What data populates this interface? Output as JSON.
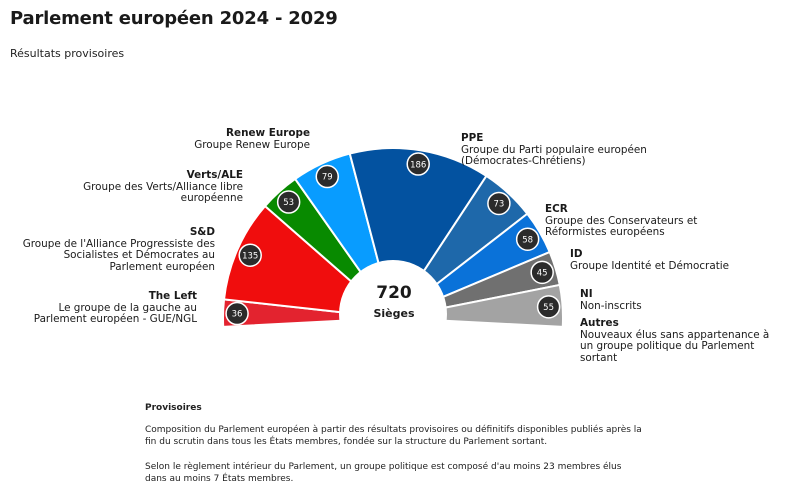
{
  "title": "Parlement européen 2024 - 2029",
  "subtitle": "Résultats provisoires",
  "chart_data": {
    "type": "pie",
    "variant": "parliament-semicircle",
    "total": 720,
    "total_label": "Sièges",
    "series": [
      {
        "name": "The Left",
        "description": "Le groupe de la gauche au Parlement européen - GUE/NGL",
        "value": 36,
        "color": "#e3232f"
      },
      {
        "name": "S&D",
        "description": "Groupe de l'Alliance Progressiste des Socialistes et Démocrates au Parlement européen",
        "value": 135,
        "color": "#f00d0d"
      },
      {
        "name": "Verts/ALE",
        "description": "Groupe des Verts/Alliance libre européenne",
        "value": 53,
        "color": "#088a00"
      },
      {
        "name": "Renew Europe",
        "description": "Groupe Renew Europe",
        "value": 79,
        "color": "#089cff"
      },
      {
        "name": "PPE",
        "description": "Groupe du Parti populaire européen (Démocrates-Chrétiens)",
        "value": 186,
        "color": "#0352a0"
      },
      {
        "name": "ECR",
        "description": "Groupe des Conservateurs et Réformistes européens",
        "value": 73,
        "color": "#1e68aa"
      },
      {
        "name": "ID",
        "description": "Groupe Identité et Démocratie",
        "value": 58,
        "color": "#0a72d9"
      },
      {
        "name": "NI",
        "description": "Non-inscrits",
        "value": 45,
        "color": "#707070"
      },
      {
        "name": "Autres",
        "description": "Nouveaux élus sans appartenance à un groupe politique du Parlement sortant",
        "value": 55,
        "color": "#a3a3a3"
      }
    ]
  },
  "notes": {
    "title": "Provisoires",
    "paragraphs": [
      "Composition du Parlement européen à partir des résultats provisoires ou définitifs disponibles publiés après la fin du scrutin dans tous les États membres, fondée sur la structure du Parlement sortant.",
      "Selon le règlement intérieur du Parlement, un groupe politique est composé d'au moins 23 membres élus dans au moins 7 États membres."
    ]
  }
}
